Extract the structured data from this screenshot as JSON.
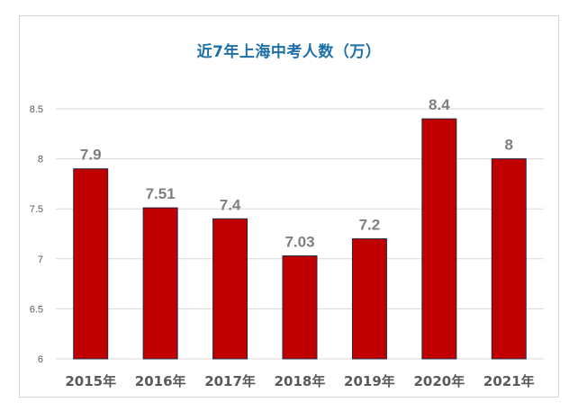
{
  "chart_data": {
    "type": "bar",
    "title": "近7年上海中考人数（万）",
    "categories": [
      "2015年",
      "2016年",
      "2017年",
      "2018年",
      "2019年",
      "2020年",
      "2021年"
    ],
    "values": [
      7.9,
      7.51,
      7.4,
      7.03,
      7.2,
      8.4,
      8
    ],
    "value_labels": [
      "7.9",
      "7.51",
      "7.4",
      "7.03",
      "7.2",
      "8.4",
      "8"
    ],
    "ylim": [
      6,
      8.5
    ],
    "yticks": [
      6,
      6.5,
      7,
      7.5,
      8,
      8.5
    ],
    "ytick_labels": [
      "6",
      "6.5",
      "7",
      "7.5",
      "8",
      "8.5"
    ],
    "xlabel": "",
    "ylabel": "",
    "grid": true,
    "bar_color": "#c00000",
    "bar_edge_color": "#1f2a44",
    "title_color": "#1d6fa8"
  }
}
